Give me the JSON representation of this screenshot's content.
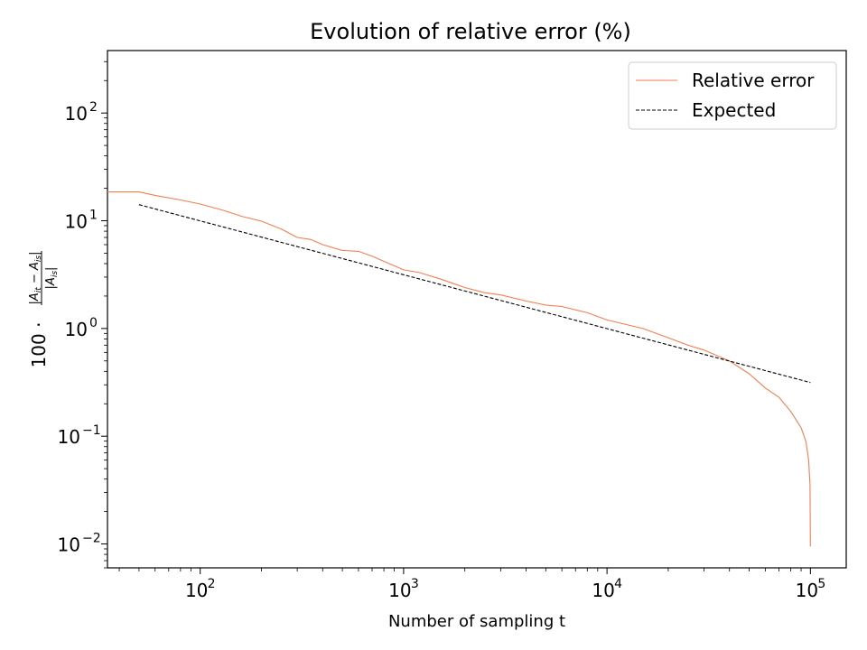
{
  "chart_data": {
    "type": "line",
    "title": "Evolution of relative error (%)",
    "xlabel": "Number of sampling t",
    "ylabel": "100 · |A_it − A_is| / |A_is|",
    "xscale": "log",
    "yscale": "log",
    "xlim": [
      35,
      150000
    ],
    "ylim": [
      0.006,
      380
    ],
    "xticks": [
      {
        "value": 100,
        "base": "10",
        "exp": "2"
      },
      {
        "value": 1000,
        "base": "10",
        "exp": "3"
      },
      {
        "value": 10000,
        "base": "10",
        "exp": "4"
      },
      {
        "value": 100000,
        "base": "10",
        "exp": "5"
      }
    ],
    "yticks": [
      {
        "value": 0.01,
        "base": "10",
        "exp": "−2"
      },
      {
        "value": 0.1,
        "base": "10",
        "exp": "−1"
      },
      {
        "value": 1,
        "base": "10",
        "exp": "0"
      },
      {
        "value": 10,
        "base": "10",
        "exp": "1"
      },
      {
        "value": 100,
        "base": "10",
        "exp": "2"
      }
    ],
    "grid": false,
    "legend": {
      "position": "top-right"
    },
    "series": [
      {
        "name": "Relative error",
        "color": "#f07f50",
        "style": "solid",
        "x": [
          35,
          50,
          60,
          80,
          100,
          130,
          160,
          200,
          250,
          300,
          350,
          400,
          500,
          600,
          700,
          800,
          1000,
          1200,
          1500,
          2000,
          2500,
          3000,
          4000,
          5000,
          6000,
          8000,
          10000,
          15000,
          20000,
          25000,
          30000,
          40000,
          50000,
          60000,
          70000,
          80000,
          90000,
          95000,
          98000,
          99500,
          100000
        ],
        "y": [
          18.5,
          18.5,
          17.2,
          15.6,
          14.3,
          12.5,
          11.0,
          9.9,
          8.4,
          7.0,
          6.7,
          6.0,
          5.3,
          5.2,
          4.7,
          4.2,
          3.5,
          3.3,
          2.9,
          2.4,
          2.15,
          2.05,
          1.8,
          1.65,
          1.6,
          1.4,
          1.2,
          1.0,
          0.82,
          0.7,
          0.63,
          0.5,
          0.38,
          0.28,
          0.23,
          0.17,
          0.12,
          0.09,
          0.06,
          0.035,
          0.0095
        ]
      },
      {
        "name": "Expected",
        "color": "#000000",
        "style": "dashed",
        "x": [
          50,
          100000
        ],
        "y": [
          14.1,
          0.315
        ]
      }
    ]
  }
}
